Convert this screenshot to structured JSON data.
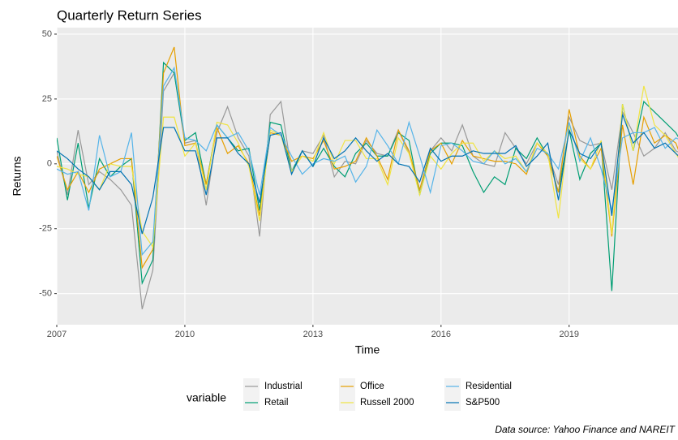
{
  "chart_data": {
    "type": "line",
    "title": "Quarterly Return Series",
    "x_label": "Time",
    "y_label": "Returns",
    "legend_title": "variable",
    "caption": "Data source: Yahoo Finance and NAREIT",
    "grid": true,
    "legend_position": "bottom",
    "xlim": [
      2007,
      2021.55
    ],
    "ylim": [
      -62,
      52.5
    ],
    "xticks": [
      2007,
      2010,
      2013,
      2016,
      2019
    ],
    "yticks": [
      -50,
      -25,
      0,
      25,
      50
    ],
    "x": [
      2007,
      2007.25,
      2007.5,
      2007.75,
      2008,
      2008.25,
      2008.5,
      2008.75,
      2009,
      2009.25,
      2009.5,
      2009.75,
      2010,
      2010.25,
      2010.5,
      2010.75,
      2011,
      2011.25,
      2011.5,
      2011.75,
      2012,
      2012.25,
      2012.5,
      2012.75,
      2013,
      2013.25,
      2013.5,
      2013.75,
      2014,
      2014.25,
      2014.5,
      2014.75,
      2015,
      2015.25,
      2015.5,
      2015.75,
      2016,
      2016.25,
      2016.5,
      2016.75,
      2017,
      2017.25,
      2017.5,
      2017.75,
      2018,
      2018.25,
      2018.5,
      2018.75,
      2019,
      2019.25,
      2019.5,
      2019.75,
      2020,
      2020.25,
      2020.5,
      2020.75,
      2021,
      2021.25,
      2021.5,
      2021.75
    ],
    "series": [
      {
        "name": "Industrial",
        "color": "#999999",
        "values": [
          5,
          -12,
          13,
          -8,
          -3,
          -6,
          -10,
          -16,
          -56,
          -41,
          28,
          35,
          8,
          9,
          -16,
          12,
          22,
          10,
          3,
          -28,
          19,
          24,
          -3,
          5,
          4,
          11,
          -5,
          1,
          0,
          9,
          4,
          3,
          13,
          4,
          -10,
          5,
          10,
          5,
          15,
          3,
          0,
          -1,
          12,
          6,
          0,
          8,
          4,
          -8,
          18,
          9,
          7,
          8,
          -10,
          20,
          12,
          3,
          6,
          12,
          5,
          3
        ]
      },
      {
        "name": "Retail",
        "color": "#009E73",
        "values": [
          10,
          -14,
          8,
          -17,
          2,
          -5,
          -1,
          2,
          -46,
          -37,
          39,
          35,
          9,
          12,
          -8,
          15,
          10,
          5,
          6,
          -18,
          16,
          15,
          -3,
          5,
          -1,
          6,
          -1,
          -5,
          4,
          8,
          3,
          3,
          12,
          9,
          -12,
          4,
          8,
          8,
          7,
          -3,
          -11,
          -5,
          -8,
          6,
          2,
          10,
          3,
          -11,
          13,
          -6,
          4,
          8,
          -49,
          23,
          5,
          24,
          20,
          16,
          12,
          5
        ]
      },
      {
        "name": "Office",
        "color": "#E69F00",
        "values": [
          3,
          -10,
          -3,
          -11,
          -2,
          0,
          2,
          2,
          -40,
          -33,
          35,
          45,
          7,
          8,
          -8,
          14,
          4,
          7,
          0,
          -20,
          12,
          11,
          1,
          3,
          2,
          9,
          -2,
          -1,
          1,
          10,
          3,
          -6,
          13,
          5,
          -10,
          5,
          8,
          0,
          9,
          3,
          2,
          1,
          1,
          0,
          -4,
          8,
          3,
          -11,
          21,
          3,
          -2,
          6,
          -28,
          15,
          -8,
          18,
          8,
          11,
          8,
          -3
        ]
      },
      {
        "name": "Russell 2000",
        "color": "#F0E442",
        "values": [
          -1,
          -2,
          -4,
          -5,
          -10,
          0,
          -1,
          -1,
          -26,
          -32,
          18,
          18,
          3,
          8,
          -10,
          16,
          15,
          8,
          -1,
          -22,
          13,
          11,
          -3,
          3,
          1,
          12,
          0,
          9,
          9,
          2,
          2,
          -8,
          10,
          4,
          -12,
          3,
          -2,
          4,
          8,
          8,
          1,
          5,
          2,
          3,
          -3,
          8,
          4,
          -21,
          15,
          2,
          -2,
          9,
          -27,
          23,
          5,
          30,
          15,
          11,
          4,
          -3
        ]
      },
      {
        "name": "Residential",
        "color": "#56B4E9",
        "values": [
          -2,
          -4,
          -3,
          -18,
          11,
          -5,
          -3,
          12,
          -35,
          -30,
          30,
          37,
          10,
          9,
          5,
          15,
          10,
          12,
          5,
          -12,
          14,
          11,
          3,
          -4,
          0,
          2,
          1,
          3,
          -7,
          -1,
          13,
          7,
          0,
          16,
          3,
          -11,
          7,
          8,
          5,
          1,
          0,
          5,
          0,
          2,
          -3,
          6,
          4,
          -2,
          16,
          1,
          10,
          -2,
          -18,
          10,
          12,
          12,
          14,
          6,
          10,
          8
        ]
      },
      {
        "name": "S&P500",
        "color": "#0072B2",
        "values": [
          5,
          2,
          -2,
          -5,
          -10,
          -3,
          -3,
          -8,
          -27,
          -13,
          14,
          14,
          5,
          5,
          -12,
          10,
          10,
          4,
          0,
          -15,
          11,
          12,
          -4,
          5,
          -1,
          10,
          2,
          5,
          10,
          5,
          1,
          4,
          0,
          -1,
          -7,
          6,
          1,
          3,
          3,
          5,
          4,
          4,
          4,
          7,
          -1,
          3,
          8,
          -14,
          13,
          4,
          2,
          8,
          -20,
          19,
          8,
          12,
          6,
          8,
          4,
          0
        ]
      }
    ]
  }
}
